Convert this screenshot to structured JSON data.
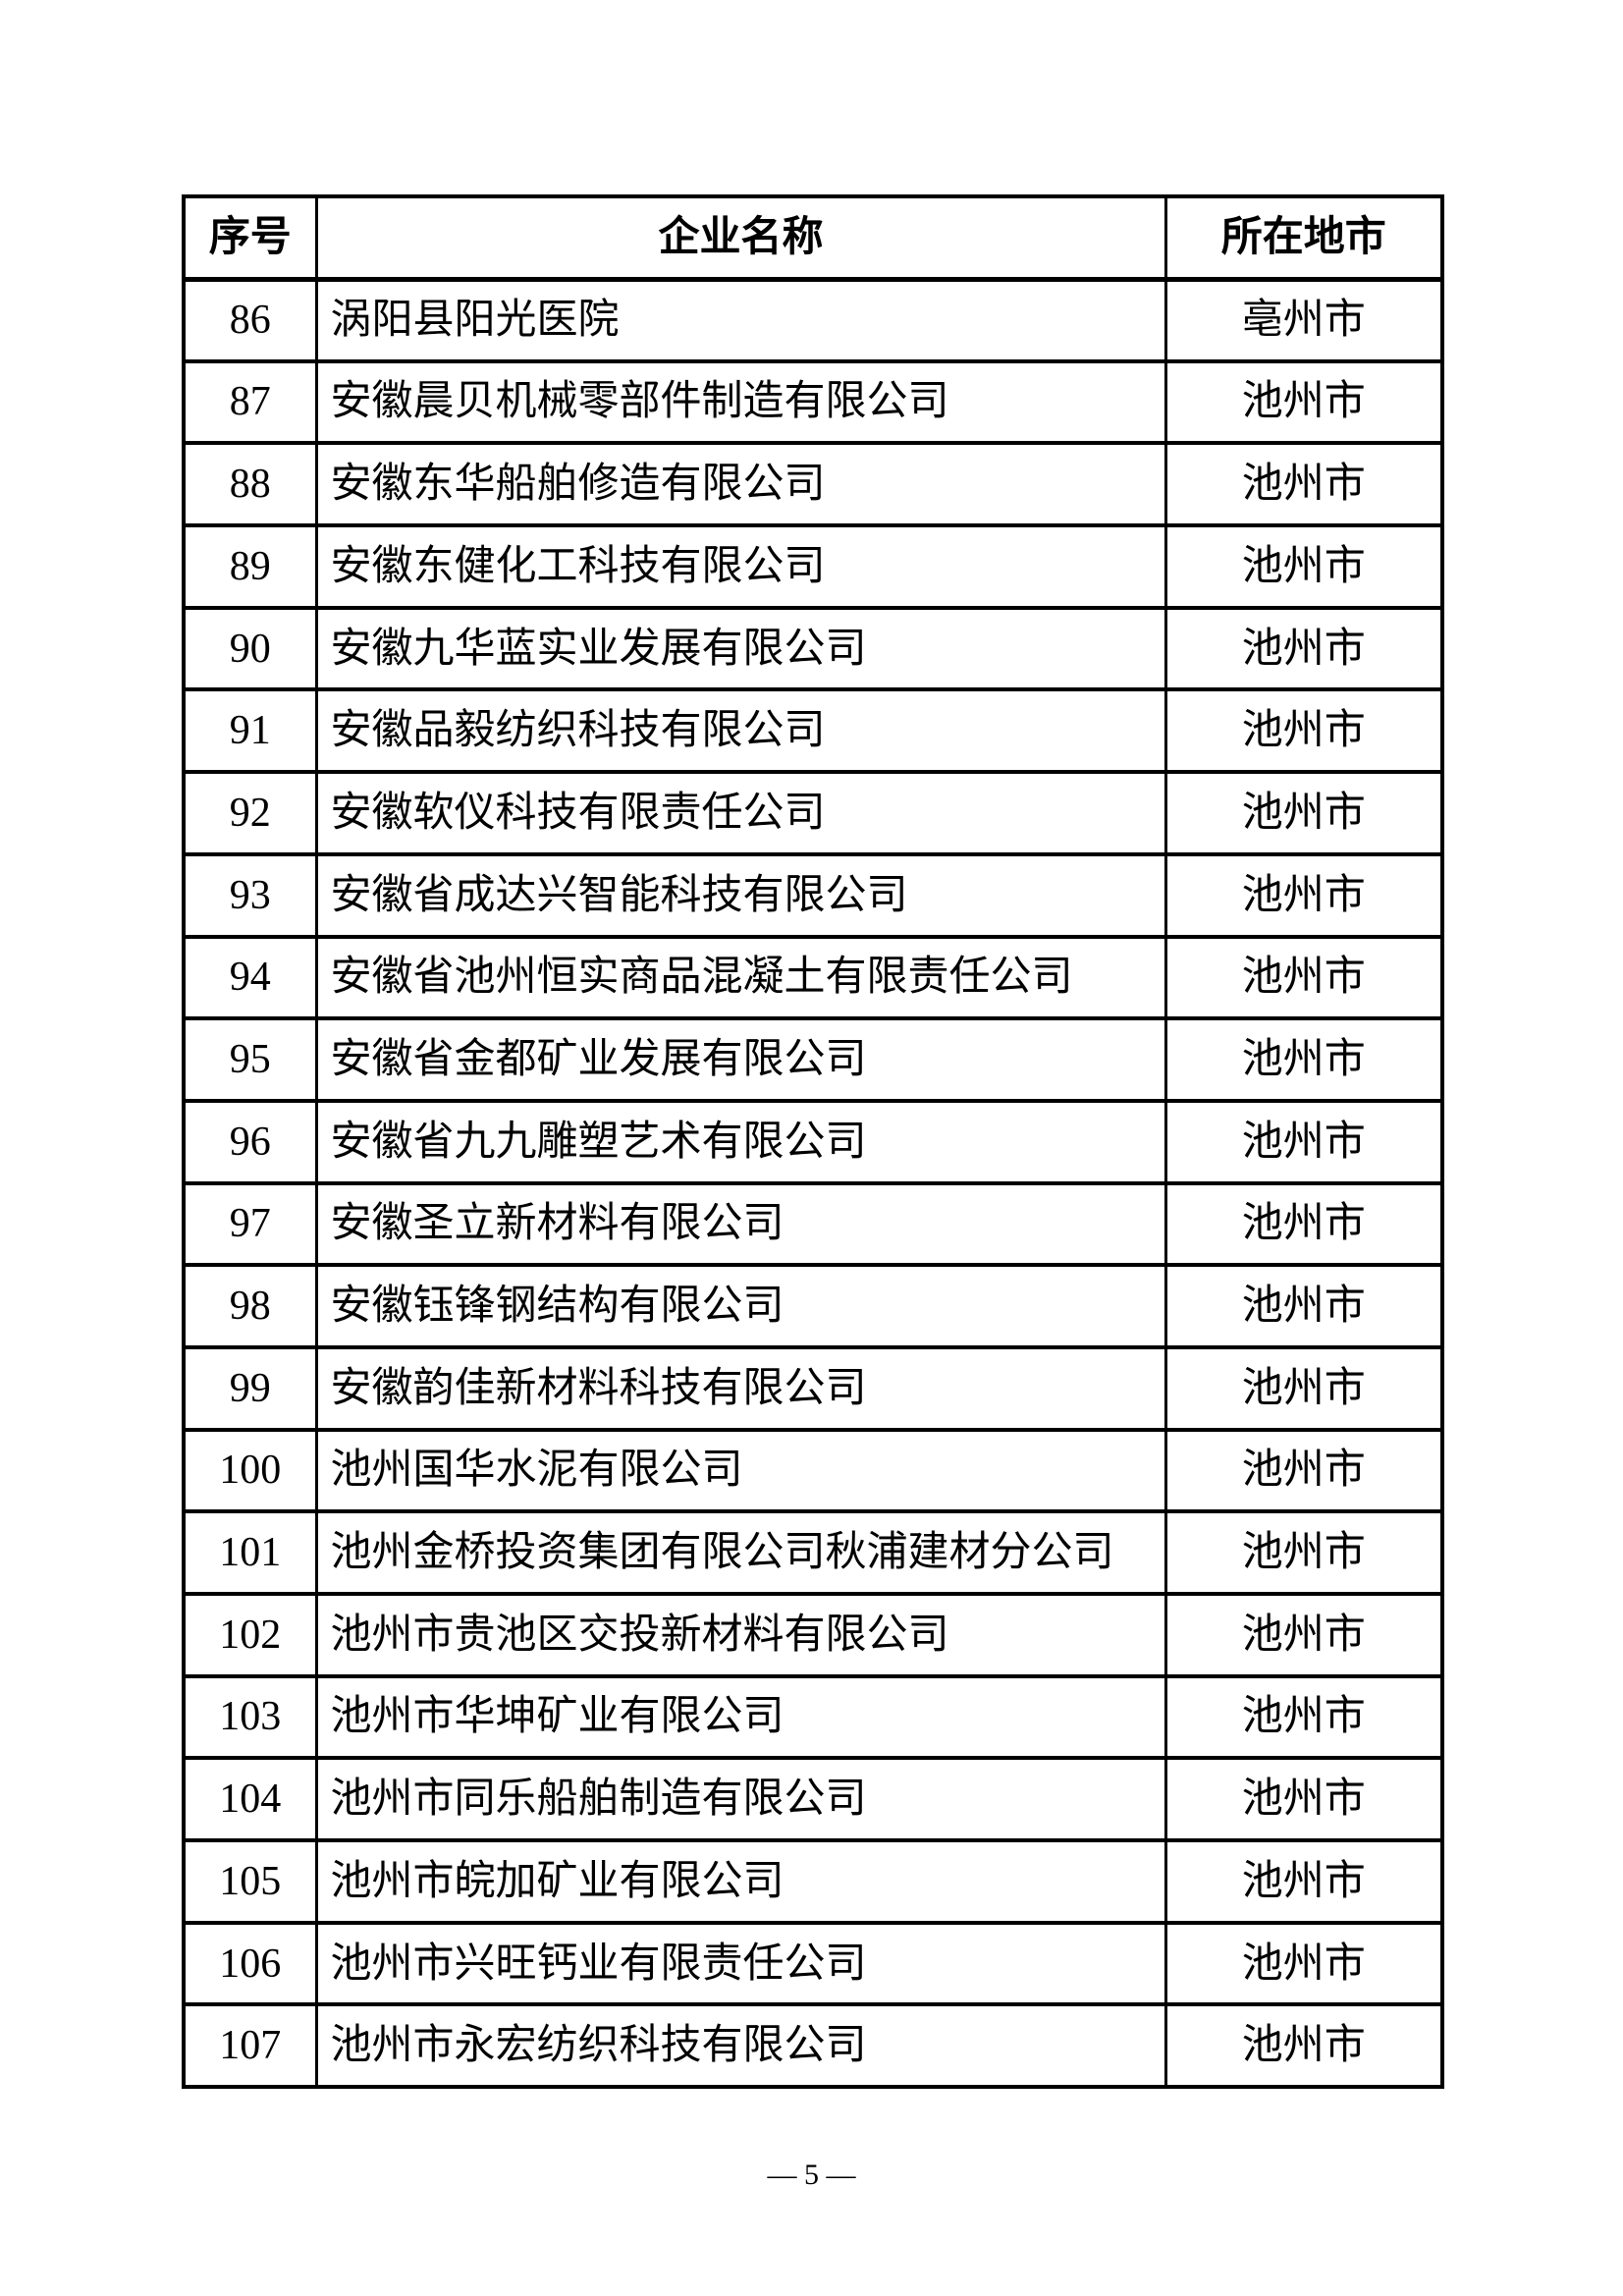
{
  "table": {
    "headers": [
      "序号",
      "企业名称",
      "所在地市"
    ],
    "rows": [
      {
        "no": "86",
        "name": "涡阳县阳光医院",
        "city": "亳州市"
      },
      {
        "no": "87",
        "name": "安徽晨贝机械零部件制造有限公司",
        "city": "池州市"
      },
      {
        "no": "88",
        "name": "安徽东华船舶修造有限公司",
        "city": "池州市"
      },
      {
        "no": "89",
        "name": "安徽东健化工科技有限公司",
        "city": "池州市"
      },
      {
        "no": "90",
        "name": "安徽九华蓝实业发展有限公司",
        "city": "池州市"
      },
      {
        "no": "91",
        "name": "安徽品毅纺织科技有限公司",
        "city": "池州市"
      },
      {
        "no": "92",
        "name": "安徽软仪科技有限责任公司",
        "city": "池州市"
      },
      {
        "no": "93",
        "name": "安徽省成达兴智能科技有限公司",
        "city": "池州市"
      },
      {
        "no": "94",
        "name": "安徽省池州恒实商品混凝土有限责任公司",
        "city": "池州市"
      },
      {
        "no": "95",
        "name": "安徽省金都矿业发展有限公司",
        "city": "池州市"
      },
      {
        "no": "96",
        "name": "安徽省九九雕塑艺术有限公司",
        "city": "池州市"
      },
      {
        "no": "97",
        "name": "安徽圣立新材料有限公司",
        "city": "池州市"
      },
      {
        "no": "98",
        "name": "安徽钰锋钢结构有限公司",
        "city": "池州市"
      },
      {
        "no": "99",
        "name": "安徽韵佳新材料科技有限公司",
        "city": "池州市"
      },
      {
        "no": "100",
        "name": "池州国华水泥有限公司",
        "city": "池州市"
      },
      {
        "no": "101",
        "name": "池州金桥投资集团有限公司秋浦建材分公司",
        "city": "池州市"
      },
      {
        "no": "102",
        "name": "池州市贵池区交投新材料有限公司",
        "city": "池州市"
      },
      {
        "no": "103",
        "name": "池州市华坤矿业有限公司",
        "city": "池州市"
      },
      {
        "no": "104",
        "name": "池州市同乐船舶制造有限公司",
        "city": "池州市"
      },
      {
        "no": "105",
        "name": "池州市皖加矿业有限公司",
        "city": "池州市"
      },
      {
        "no": "106",
        "name": "池州市兴旺钙业有限责任公司",
        "city": "池州市"
      },
      {
        "no": "107",
        "name": "池州市永宏纺织科技有限公司",
        "city": "池州市"
      }
    ]
  },
  "page": {
    "footer": "— 5 —"
  }
}
